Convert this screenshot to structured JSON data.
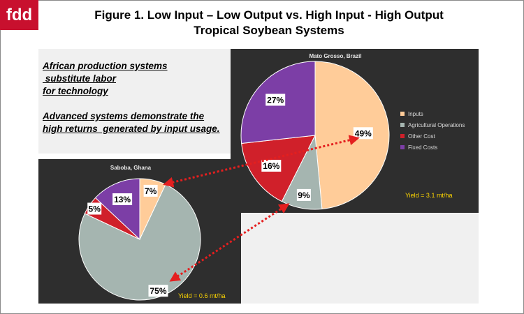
{
  "logo": "fdd",
  "title": {
    "line1": "Figure 1. Low Input – Low Output vs. High Input - High Output",
    "line2": "Tropical Soybean Systems"
  },
  "notes": [
    "African production systems",
    " substitute labor",
    "for technology",
    "Advanced systems demonstrate the",
    "high returns  generated by input usage."
  ],
  "colors": {
    "inputs": "#ffcc99",
    "agricultural_operations": "#a5b5b0",
    "other_cost": "#d0202a",
    "fixed_costs": "#7c3ea6",
    "chart_bg": "#2e2e2e",
    "yield_text": "#ffd700",
    "arrow": "#e41f1f"
  },
  "chart_data": [
    {
      "type": "pie",
      "title": "Mato Grosso, Brazil",
      "categories": [
        "Inputs",
        "Agricultural Operations",
        "Other Cost",
        "Fixed Costs"
      ],
      "values": [
        49,
        9,
        16,
        27
      ],
      "data_labels": [
        "49%",
        "9%",
        "16%",
        "27%"
      ],
      "legend": "right",
      "annotation": "Yield = 3.1 mt/ha"
    },
    {
      "type": "pie",
      "title": "Saboba, Ghana",
      "categories": [
        "Inputs",
        "Agricultural Operations",
        "Other Cost",
        "Fixed Costs"
      ],
      "values": [
        7,
        75,
        5,
        13
      ],
      "data_labels": [
        "7%",
        "75%",
        "5%",
        "13%"
      ],
      "legend": "none",
      "annotation": "Yield = 0.6 mt/ha"
    }
  ]
}
